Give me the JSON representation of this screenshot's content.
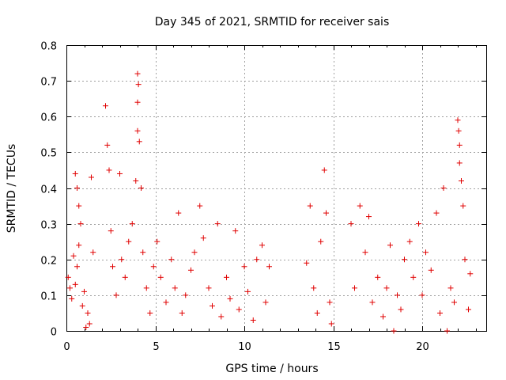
{
  "chart_data": {
    "type": "scatter",
    "title": "Day 345 of 2021, SRMTID for receiver sais",
    "xlabel": "GPS time / hours",
    "ylabel": "SRMTID / TECUs",
    "xlim": [
      0,
      23.6
    ],
    "ylim": [
      0,
      0.8
    ],
    "xticks": [
      0,
      5,
      10,
      15,
      20
    ],
    "xtick_labels": [
      "0",
      "5",
      "10",
      "15",
      "20"
    ],
    "yticks": [
      0,
      0.1,
      0.2,
      0.3,
      0.4,
      0.5,
      0.6,
      0.7,
      0.8
    ],
    "ytick_labels": [
      "0",
      "0.1",
      "0.2",
      "0.3",
      "0.4",
      "0.5",
      "0.6",
      "0.7",
      "0.8"
    ],
    "grid": true,
    "marker": "+",
    "marker_color": "#e00000",
    "series": [
      {
        "name": "SRMTID",
        "points": [
          [
            0.1,
            0.15
          ],
          [
            0.2,
            0.12
          ],
          [
            0.3,
            0.09
          ],
          [
            0.4,
            0.21
          ],
          [
            0.5,
            0.13
          ],
          [
            0.6,
            0.18
          ],
          [
            0.7,
            0.24
          ],
          [
            0.8,
            0.3
          ],
          [
            0.9,
            0.07
          ],
          [
            1.0,
            0.11
          ],
          [
            0.5,
            0.44
          ],
          [
            0.6,
            0.4
          ],
          [
            0.7,
            0.35
          ],
          [
            1.2,
            0.05
          ],
          [
            1.3,
            0.02
          ],
          [
            1.4,
            0.43
          ],
          [
            1.5,
            0.22
          ],
          [
            1.1,
            0.01
          ],
          [
            2.2,
            0.63
          ],
          [
            2.3,
            0.52
          ],
          [
            2.4,
            0.45
          ],
          [
            2.5,
            0.28
          ],
          [
            2.6,
            0.18
          ],
          [
            2.8,
            0.1
          ],
          [
            3.0,
            0.44
          ],
          [
            3.1,
            0.2
          ],
          [
            3.3,
            0.15
          ],
          [
            3.5,
            0.25
          ],
          [
            3.7,
            0.3
          ],
          [
            3.9,
            0.42
          ],
          [
            4.0,
            0.72
          ],
          [
            4.05,
            0.69
          ],
          [
            4.0,
            0.64
          ],
          [
            4.0,
            0.56
          ],
          [
            4.1,
            0.53
          ],
          [
            4.2,
            0.4
          ],
          [
            4.3,
            0.22
          ],
          [
            4.5,
            0.12
          ],
          [
            4.7,
            0.05
          ],
          [
            4.9,
            0.18
          ],
          [
            5.1,
            0.25
          ],
          [
            5.3,
            0.15
          ],
          [
            5.6,
            0.08
          ],
          [
            5.9,
            0.2
          ],
          [
            6.1,
            0.12
          ],
          [
            6.3,
            0.33
          ],
          [
            6.5,
            0.05
          ],
          [
            6.7,
            0.1
          ],
          [
            7.0,
            0.17
          ],
          [
            7.2,
            0.22
          ],
          [
            7.5,
            0.35
          ],
          [
            7.7,
            0.26
          ],
          [
            8.0,
            0.12
          ],
          [
            8.2,
            0.07
          ],
          [
            8.5,
            0.3
          ],
          [
            8.7,
            0.04
          ],
          [
            9.0,
            0.15
          ],
          [
            9.2,
            0.09
          ],
          [
            9.5,
            0.28
          ],
          [
            9.7,
            0.06
          ],
          [
            10.0,
            0.18
          ],
          [
            10.2,
            0.11
          ],
          [
            10.5,
            0.03
          ],
          [
            10.7,
            0.2
          ],
          [
            11.0,
            0.24
          ],
          [
            11.2,
            0.08
          ],
          [
            11.4,
            0.18
          ],
          [
            13.5,
            0.19
          ],
          [
            13.7,
            0.35
          ],
          [
            13.9,
            0.12
          ],
          [
            14.1,
            0.05
          ],
          [
            14.3,
            0.25
          ],
          [
            14.5,
            0.45
          ],
          [
            14.6,
            0.33
          ],
          [
            14.8,
            0.08
          ],
          [
            14.9,
            0.02
          ],
          [
            16.0,
            0.3
          ],
          [
            16.2,
            0.12
          ],
          [
            16.5,
            0.35
          ],
          [
            16.8,
            0.22
          ],
          [
            17.0,
            0.32
          ],
          [
            17.2,
            0.08
          ],
          [
            17.5,
            0.15
          ],
          [
            17.8,
            0.04
          ],
          [
            18.0,
            0.12
          ],
          [
            18.2,
            0.24
          ],
          [
            18.4,
            0.0
          ],
          [
            18.6,
            0.1
          ],
          [
            18.8,
            0.06
          ],
          [
            19.0,
            0.2
          ],
          [
            19.3,
            0.25
          ],
          [
            19.5,
            0.15
          ],
          [
            19.8,
            0.3
          ],
          [
            20.0,
            0.1
          ],
          [
            20.2,
            0.22
          ],
          [
            20.5,
            0.17
          ],
          [
            20.8,
            0.33
          ],
          [
            21.0,
            0.05
          ],
          [
            21.2,
            0.4
          ],
          [
            21.4,
            0.0
          ],
          [
            21.6,
            0.12
          ],
          [
            21.8,
            0.08
          ],
          [
            22.0,
            0.59
          ],
          [
            22.05,
            0.56
          ],
          [
            22.1,
            0.52
          ],
          [
            22.1,
            0.47
          ],
          [
            22.2,
            0.42
          ],
          [
            22.3,
            0.35
          ],
          [
            22.4,
            0.2
          ],
          [
            22.6,
            0.06
          ],
          [
            22.7,
            0.16
          ]
        ]
      }
    ]
  }
}
